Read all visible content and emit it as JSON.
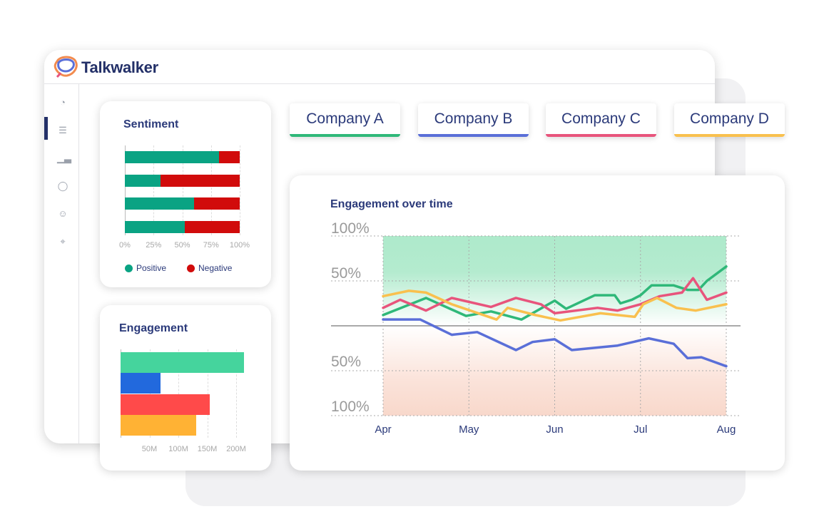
{
  "app": {
    "brand": "Talkwalker"
  },
  "sidebar": {
    "items": [
      {
        "icon": "dashboard-gauge-icon"
      },
      {
        "icon": "search-list-icon",
        "active": true
      },
      {
        "icon": "analytics-chart-icon"
      },
      {
        "icon": "chat-bubbles-icon"
      },
      {
        "icon": "smiley-icon"
      },
      {
        "icon": "location-pin-icon"
      }
    ]
  },
  "companies": [
    {
      "label": "Company A",
      "color": "#2fb879"
    },
    {
      "label": "Company B",
      "color": "#5a6fd8"
    },
    {
      "label": "Company C",
      "color": "#e8547c"
    },
    {
      "label": "Company D",
      "color": "#f9c04e"
    }
  ],
  "sentiment": {
    "title": "Sentiment",
    "legend": {
      "positive": "Positive",
      "negative": "Negative"
    }
  },
  "engagement": {
    "title": "Engagement"
  },
  "engagement_time": {
    "title": "Engagement over time"
  },
  "chart_data": [
    {
      "type": "bar",
      "orientation": "horizontal",
      "stacked": true,
      "title": "Sentiment",
      "categories": [
        "Company A",
        "Company B",
        "Company C",
        "Company D"
      ],
      "series": [
        {
          "name": "Positive",
          "color": "#0aa383",
          "values": [
            82,
            31,
            60,
            52
          ]
        },
        {
          "name": "Negative",
          "color": "#d10b0b",
          "values": [
            18,
            69,
            40,
            48
          ]
        }
      ],
      "xticks": [
        "0%",
        "25%",
        "50%",
        "75%",
        "100%"
      ],
      "xlim": [
        0,
        100
      ],
      "grid": true,
      "legend": "bottom"
    },
    {
      "type": "bar",
      "orientation": "horizontal",
      "title": "Engagement",
      "categories": [
        "Company A",
        "Company B",
        "Company C",
        "Company D"
      ],
      "colors": [
        "#45d49d",
        "#2269dd",
        "#ff4a4a",
        "#ffb234"
      ],
      "values": [
        213,
        69,
        154,
        131
      ],
      "unit": "M",
      "xticks": [
        "50M",
        "100M",
        "150M",
        "200M"
      ],
      "xtick_values": [
        50,
        100,
        150,
        200
      ],
      "xlim": [
        0,
        215
      ],
      "grid": true
    },
    {
      "type": "line",
      "title": "Engagement over time",
      "xticks": [
        "Apr",
        "May",
        "Jun",
        "Jul",
        "Aug"
      ],
      "yticks": [
        {
          "v": 100,
          "label": "100%"
        },
        {
          "v": 50,
          "label": "50%"
        },
        {
          "v": -50,
          "label": "50%"
        },
        {
          "v": -100,
          "label": "100%"
        }
      ],
      "ylim": [
        -100,
        100
      ],
      "grid": true,
      "series": [
        {
          "color": "#2fb879",
          "points": [
            [
              "Apr 1",
              12
            ],
            [
              "Apr 16",
              31
            ],
            [
              "Apr 30",
              11
            ],
            [
              "May 9",
              16
            ],
            [
              "May 20",
              7
            ],
            [
              "Jun 1",
              28
            ],
            [
              "Jun 5",
              19
            ],
            [
              "Jun 15",
              34
            ],
            [
              "Jun 22",
              34
            ],
            [
              "Jun 24",
              25
            ],
            [
              "Jun 28",
              29
            ],
            [
              "Jul 1",
              34
            ],
            [
              "Jul 5",
              45
            ],
            [
              "Jul 13",
              45
            ],
            [
              "Jul 18",
              40
            ],
            [
              "Jul 22",
              40
            ],
            [
              "Jul 25",
              50
            ],
            [
              "Aug 1",
              66
            ]
          ]
        },
        {
          "color": "#5a6fd8",
          "points": [
            [
              "Apr 1",
              7
            ],
            [
              "Apr 14",
              7
            ],
            [
              "Apr 25",
              -10
            ],
            [
              "May 4",
              -7
            ],
            [
              "May 18",
              -27
            ],
            [
              "May 24",
              -18
            ],
            [
              "Jun 1",
              -15
            ],
            [
              "Jun 7",
              -27
            ],
            [
              "Jun 23",
              -22
            ],
            [
              "Jul 4",
              -14
            ],
            [
              "Jul 13",
              -20
            ],
            [
              "Jul 18",
              -36
            ],
            [
              "Jul 23",
              -35
            ],
            [
              "Aug 1",
              -45
            ]
          ]
        },
        {
          "color": "#e8547c",
          "points": [
            [
              "Apr 1",
              20
            ],
            [
              "Apr 7",
              29
            ],
            [
              "Apr 16",
              17
            ],
            [
              "Apr 25",
              31
            ],
            [
              "May 9",
              21
            ],
            [
              "May 18",
              31
            ],
            [
              "May 27",
              24
            ],
            [
              "Jun 1",
              14
            ],
            [
              "Jun 16",
              20
            ],
            [
              "Jun 23",
              17
            ],
            [
              "Jul 1",
              24
            ],
            [
              "Jul 8",
              33
            ],
            [
              "Jul 16",
              37
            ],
            [
              "Jul 20",
              53
            ],
            [
              "Jul 25",
              29
            ],
            [
              "Aug 1",
              37
            ]
          ]
        },
        {
          "color": "#f9c04e",
          "points": [
            [
              "Apr 1",
              33
            ],
            [
              "Apr 10",
              39
            ],
            [
              "Apr 16",
              37
            ],
            [
              "Apr 25",
              24
            ],
            [
              "May 11",
              7
            ],
            [
              "May 15",
              20
            ],
            [
              "May 25",
              12
            ],
            [
              "Jun 3",
              6
            ],
            [
              "Jun 17",
              14
            ],
            [
              "Jun 29",
              10
            ],
            [
              "Jul 2",
              24
            ],
            [
              "Jul 7",
              31
            ],
            [
              "Jul 14",
              20
            ],
            [
              "Jul 21",
              17
            ],
            [
              "Aug 1",
              24
            ]
          ]
        }
      ]
    }
  ]
}
